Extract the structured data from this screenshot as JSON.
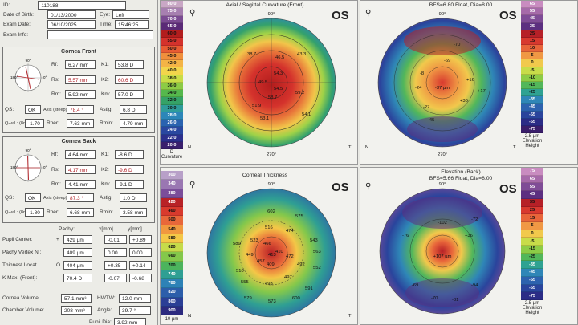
{
  "patient": {
    "id_label": "ID:",
    "id_value": "110188",
    "dob_label": "Date of Birth:",
    "dob_value": "01/13/2000",
    "eye_label": "Eye:",
    "eye_value": "Left",
    "exam_date_label": "Exam Date:",
    "exam_date_value": "06/10/2025",
    "time_label": "Time:",
    "time_value": "15:46:25",
    "exam_info_label": "Exam Info:"
  },
  "cornea_front": {
    "title": "Cornea Front",
    "rf_label": "Rf:",
    "rf_value": "6.27 mm",
    "rs_label": "Rs:",
    "rs_value": "5.57 mm",
    "rm_label": "Rm:",
    "rm_value": "5.92 mm",
    "k1_label": "K1:",
    "k1_value": "53.8 D",
    "k2_label": "K2:",
    "k2_value": "60.6 D",
    "km_label": "Km:",
    "km_value": "57.0 D",
    "qs_label": "QS:",
    "qs_value": "OK",
    "axis_label": "Axis (steep):",
    "axis_value": "78.4 °",
    "astig_label": "Astig:",
    "astig_value": "6.8 D",
    "qval_label": "Q-val.: (8mm)",
    "qval_value": "-1.70",
    "rper_label": "Rper:",
    "rper_value": "7.63 mm",
    "rmin_label": "Rmin:",
    "rmin_value": "4.79 mm",
    "polar": {
      "top": "90°",
      "left": "180°",
      "right": "0°",
      "bottom": "270°"
    }
  },
  "cornea_back": {
    "title": "Cornea Back",
    "rf_label": "Rf:",
    "rf_value": "4.64 mm",
    "rs_label": "Rs:",
    "rs_value": "4.17 mm",
    "rm_label": "Rm:",
    "rm_value": "4.41 mm",
    "k1_label": "K1:",
    "k1_value": "-8.6 D",
    "k2_label": "K2:",
    "k2_value": "-9.6 D",
    "km_label": "Km:",
    "km_value": "-9.1 D",
    "qs_label": "QS:",
    "qs_value": "OK",
    "axis_label": "Axis (steep):",
    "axis_value": "87.3 °",
    "astig_label": "Astig:",
    "astig_value": "1.0 D",
    "qval_label": "Q-val.: (8mm)",
    "qval_value": "-1.80",
    "rper_label": "Rper:",
    "rper_value": "6.68 mm",
    "rmin_label": "Rmin:",
    "rmin_value": "3.58 mm",
    "polar": {
      "top": "90°",
      "left": "180°",
      "right": "0°",
      "bottom": "270°"
    }
  },
  "pachy": {
    "header_pachy": "Pachy:",
    "header_x": "x[mm]",
    "header_y": "y[mm]",
    "rows": [
      {
        "label": "Pupil Center:",
        "symbol": "+",
        "pachy": "429 µm",
        "x": "-0.01",
        "y": "+0.89"
      },
      {
        "label": "Pachy Vertex N.:",
        "symbol": "",
        "pachy": "409 µm",
        "x": "0.00",
        "y": "0.00"
      },
      {
        "label": "Thinnest Locat.:",
        "symbol": "O",
        "pachy": "404 µm",
        "x": "+0.35",
        "y": "+0.14"
      },
      {
        "label": "K Max. (Front):",
        "symbol": "",
        "pachy": "70.4 D",
        "x": "-0.07",
        "y": "-0.68"
      }
    ],
    "volume_label": "Cornea Volume:",
    "volume_value": "57.1 mm³",
    "hwtw_label": "HWTW:",
    "hwtw_value": "12.0 mm",
    "chamber_label": "Chamber Volume:",
    "chamber_value": "208 mm³",
    "angle_label": "Angle:",
    "angle_value": "39.7 °",
    "pupil_dia_label": "Pupil Dia:",
    "pupil_dia_value": "3.92 mm"
  },
  "maps": {
    "curvature": {
      "title": "Axial / Sagittal Curvature (Front)",
      "eye": "OS",
      "scale": [
        "80.0",
        "75.0",
        "70.0",
        "65.0",
        "60.0",
        "55.0",
        "50.0",
        "45.0",
        "42.0",
        "40.0",
        "38.0",
        "36.0",
        "34.0",
        "32.0",
        "30.0",
        "28.0",
        "26.0",
        "24.0",
        "22.0",
        "20.0"
      ],
      "scale_colors": [
        "#c9a7c5",
        "#a77fb0",
        "#7b4b92",
        "#5a2a76",
        "#b21d1d",
        "#d4322c",
        "#e85b33",
        "#f08f3c",
        "#f4b446",
        "#f2d54b",
        "#c9dd47",
        "#8ccb45",
        "#55b84c",
        "#35a267",
        "#2f9c9a",
        "#2c86b8",
        "#2a63b0",
        "#2a47a0",
        "#2c2f8c",
        "#3a1f6d"
      ],
      "scale_footer": [
        "D",
        "Curvature",
        "Abs."
      ],
      "values": [
        "38.7",
        "46.5",
        "43.3",
        "54.3",
        "49.5",
        "54.5",
        "59.2",
        "58.7",
        "51.9",
        "54.1",
        "53.1"
      ],
      "axis": {
        "top": "90°",
        "bottom": "270°",
        "left": "N",
        "right": "T"
      }
    },
    "elevation_front": {
      "title": "BFS=6.80 Float, Dia=8.00",
      "eye": "OS",
      "scale": [
        "65",
        "55",
        "45",
        "35",
        "25",
        "15",
        "10",
        "5",
        "0",
        "-5",
        "-10",
        "-15",
        "-25",
        "-35",
        "-45",
        "-55",
        "-65",
        "-75"
      ],
      "scale_colors": [
        "#c98cc0",
        "#a66aa9",
        "#7f4c96",
        "#5c2f80",
        "#b62027",
        "#d8392f",
        "#e8653a",
        "#f09844",
        "#f1c94c",
        "#c8dc49",
        "#8dcc46",
        "#52b75a",
        "#2fa292",
        "#2f86b7",
        "#2d62ae",
        "#2a449c",
        "#2b2c86",
        "#3a1e6a"
      ],
      "scale_footer": [
        "2.5 µm",
        "Elevation",
        "Height"
      ],
      "values": [
        "-70",
        "-69",
        "-8",
        "+16",
        "-24",
        "-37 µm",
        "+17",
        "+30",
        "-45",
        "-27"
      ],
      "axis": {
        "top": "90°",
        "bottom": "270°",
        "left": "N",
        "right": "T"
      }
    },
    "thickness": {
      "title": "Corneal Thickness",
      "eye": "OS",
      "scale": [
        "300",
        "340",
        "380",
        "420",
        "460",
        "500",
        "540",
        "580",
        "620",
        "660",
        "700",
        "740",
        "780",
        "820",
        "860",
        "900"
      ],
      "scale_colors": [
        "#b8a0c8",
        "#9a77b2",
        "#7b4e9a",
        "#b82226",
        "#d83a2d",
        "#e8673a",
        "#f0983f",
        "#f4c747",
        "#c6db4a",
        "#84c84b",
        "#4cb45d",
        "#2f9f93",
        "#2d82b6",
        "#2c5eaa",
        "#2b3f96",
        "#2c2a7f"
      ],
      "scale_footer": [
        "10 µm"
      ],
      "values": [
        "602",
        "575",
        "516",
        "474",
        "543",
        "523",
        "466",
        "413",
        "410",
        "457",
        "492",
        "409",
        "449",
        "472",
        "497",
        "493",
        "552",
        "591",
        "579",
        "600",
        "589",
        "510",
        "555",
        "563",
        "573"
      ],
      "axis": {
        "top": "90°",
        "bottom": "270°",
        "left": "N",
        "right": "T"
      }
    },
    "elevation_back": {
      "title": "Elevation (Back)",
      "subtitle": "BFS=5.66 Float, Dia=8.00",
      "eye": "OS",
      "scale": [
        "75",
        "65",
        "55",
        "45",
        "35",
        "25",
        "15",
        "5",
        "0",
        "-5",
        "-15",
        "-25",
        "-35",
        "-45",
        "-55",
        "-65",
        "-75"
      ],
      "scale_colors": [
        "#c98cc0",
        "#a66aa9",
        "#7f4c96",
        "#5c2f80",
        "#b62027",
        "#d8392f",
        "#e8653a",
        "#f09844",
        "#f1c94c",
        "#c8dc49",
        "#8dcc46",
        "#52b75a",
        "#2fa292",
        "#2f86b7",
        "#2d62ae",
        "#2a449c",
        "#2b2c86"
      ],
      "scale_footer": [
        "2.5 µm",
        "Elevation",
        "Height"
      ],
      "values": [
        "-102",
        "+36",
        "+107 µm",
        "-76",
        "-72",
        "-70",
        "-69",
        "-94",
        "-81"
      ],
      "axis": {
        "top": "90°",
        "bottom": "270°",
        "left": "N",
        "right": "T"
      }
    }
  }
}
